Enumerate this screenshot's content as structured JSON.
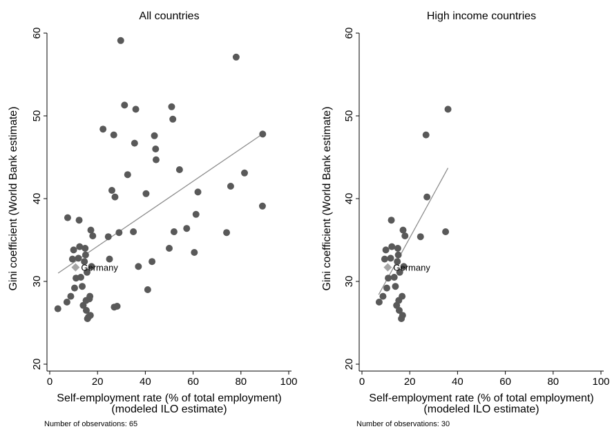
{
  "chart_data": [
    {
      "type": "scatter",
      "title": "All countries",
      "xlabel_line1": "Self-employment rate (% of total employment)",
      "xlabel_line2": "(modeled ILO estimate)",
      "ylabel": "Gini coefficient (World Bank estimate)",
      "xlim": [
        0,
        100
      ],
      "ylim": [
        20,
        60
      ],
      "xticks": [
        0,
        20,
        40,
        60,
        80,
        100
      ],
      "yticks": [
        20,
        30,
        40,
        50,
        60
      ],
      "grid": false,
      "marker_color": "#595959",
      "highlight_color": "#a6a6a6",
      "line_color": "#8c8c8c",
      "note": "Number of observations: 65",
      "highlight": {
        "label": "Germany",
        "x": 10.8,
        "y": 31.7
      },
      "fit_line": [
        [
          3.5,
          31.0
        ],
        [
          89,
          47.8
        ]
      ],
      "points": [
        [
          3.4,
          26.7
        ],
        [
          7.2,
          27.5
        ],
        [
          7.5,
          37.7
        ],
        [
          8.8,
          28.2
        ],
        [
          9.5,
          32.7
        ],
        [
          10.0,
          33.8
        ],
        [
          10.4,
          29.2
        ],
        [
          11.0,
          30.4
        ],
        [
          12.0,
          32.8
        ],
        [
          12.3,
          37.4
        ],
        [
          12.5,
          34.2
        ],
        [
          13.0,
          30.5
        ],
        [
          13.6,
          29.4
        ],
        [
          14.0,
          27.1
        ],
        [
          14.5,
          32.4
        ],
        [
          14.8,
          34.0
        ],
        [
          15.0,
          33.2
        ],
        [
          15.2,
          27.7
        ],
        [
          15.3,
          26.5
        ],
        [
          15.6,
          31.1
        ],
        [
          15.8,
          25.5
        ],
        [
          16.2,
          25.7
        ],
        [
          16.6,
          27.9
        ],
        [
          16.8,
          28.2
        ],
        [
          17.0,
          25.9
        ],
        [
          17.2,
          36.2
        ],
        [
          17.5,
          31.8
        ],
        [
          18.0,
          35.5
        ],
        [
          22.3,
          48.4
        ],
        [
          24.5,
          35.4
        ],
        [
          25.0,
          32.7
        ],
        [
          26.0,
          41.0
        ],
        [
          26.8,
          47.7
        ],
        [
          27.0,
          26.9
        ],
        [
          27.3,
          40.2
        ],
        [
          28.2,
          27.0
        ],
        [
          29.0,
          35.9
        ],
        [
          29.7,
          59.1
        ],
        [
          31.3,
          51.3
        ],
        [
          32.6,
          42.9
        ],
        [
          35.0,
          36.0
        ],
        [
          35.5,
          46.7
        ],
        [
          36.0,
          50.8
        ],
        [
          37.1,
          31.8
        ],
        [
          40.3,
          40.6
        ],
        [
          41.0,
          29.0
        ],
        [
          42.8,
          32.4
        ],
        [
          43.8,
          47.6
        ],
        [
          44.3,
          46.0
        ],
        [
          44.5,
          44.7
        ],
        [
          50.0,
          34.0
        ],
        [
          51.0,
          51.1
        ],
        [
          51.5,
          49.6
        ],
        [
          52.0,
          36.0
        ],
        [
          54.3,
          43.5
        ],
        [
          57.3,
          36.4
        ],
        [
          60.5,
          33.5
        ],
        [
          61.2,
          38.1
        ],
        [
          62.0,
          40.8
        ],
        [
          74.0,
          35.9
        ],
        [
          75.7,
          41.5
        ],
        [
          78.0,
          57.1
        ],
        [
          81.5,
          43.1
        ],
        [
          89.0,
          39.1
        ],
        [
          89.1,
          47.8
        ]
      ]
    },
    {
      "type": "scatter",
      "title": "High income countries",
      "xlabel_line1": "Self-employment rate (% of total employment)",
      "xlabel_line2": "(modeled ILO estimate)",
      "ylabel": "Gini coefficient (World Bank estimate)",
      "xlim": [
        0,
        100
      ],
      "ylim": [
        20,
        60
      ],
      "xticks": [
        0,
        20,
        40,
        60,
        80,
        100
      ],
      "yticks": [
        20,
        30,
        40,
        50,
        60
      ],
      "grid": false,
      "marker_color": "#595959",
      "highlight_color": "#a6a6a6",
      "line_color": "#8c8c8c",
      "note": "Number of observations: 30",
      "highlight": {
        "label": "Germany",
        "x": 10.8,
        "y": 31.7
      },
      "fit_line": [
        [
          7,
          28.4
        ],
        [
          36,
          43.7
        ]
      ],
      "points": [
        [
          7.2,
          27.5
        ],
        [
          8.8,
          28.2
        ],
        [
          9.5,
          32.7
        ],
        [
          10.0,
          33.8
        ],
        [
          10.4,
          29.2
        ],
        [
          11.0,
          30.4
        ],
        [
          12.0,
          32.8
        ],
        [
          12.3,
          37.4
        ],
        [
          12.5,
          34.2
        ],
        [
          13.5,
          30.5
        ],
        [
          14.0,
          29.4
        ],
        [
          14.5,
          27.1
        ],
        [
          14.8,
          32.4
        ],
        [
          15.0,
          34.0
        ],
        [
          15.2,
          33.2
        ],
        [
          15.4,
          27.7
        ],
        [
          15.6,
          26.5
        ],
        [
          15.8,
          31.1
        ],
        [
          16.5,
          25.5
        ],
        [
          16.8,
          28.2
        ],
        [
          17.0,
          25.9
        ],
        [
          17.2,
          36.2
        ],
        [
          17.5,
          31.8
        ],
        [
          18.0,
          35.5
        ],
        [
          24.5,
          35.4
        ],
        [
          26.8,
          47.7
        ],
        [
          27.2,
          40.2
        ],
        [
          35.0,
          36.0
        ],
        [
          36.0,
          50.8
        ]
      ]
    }
  ]
}
